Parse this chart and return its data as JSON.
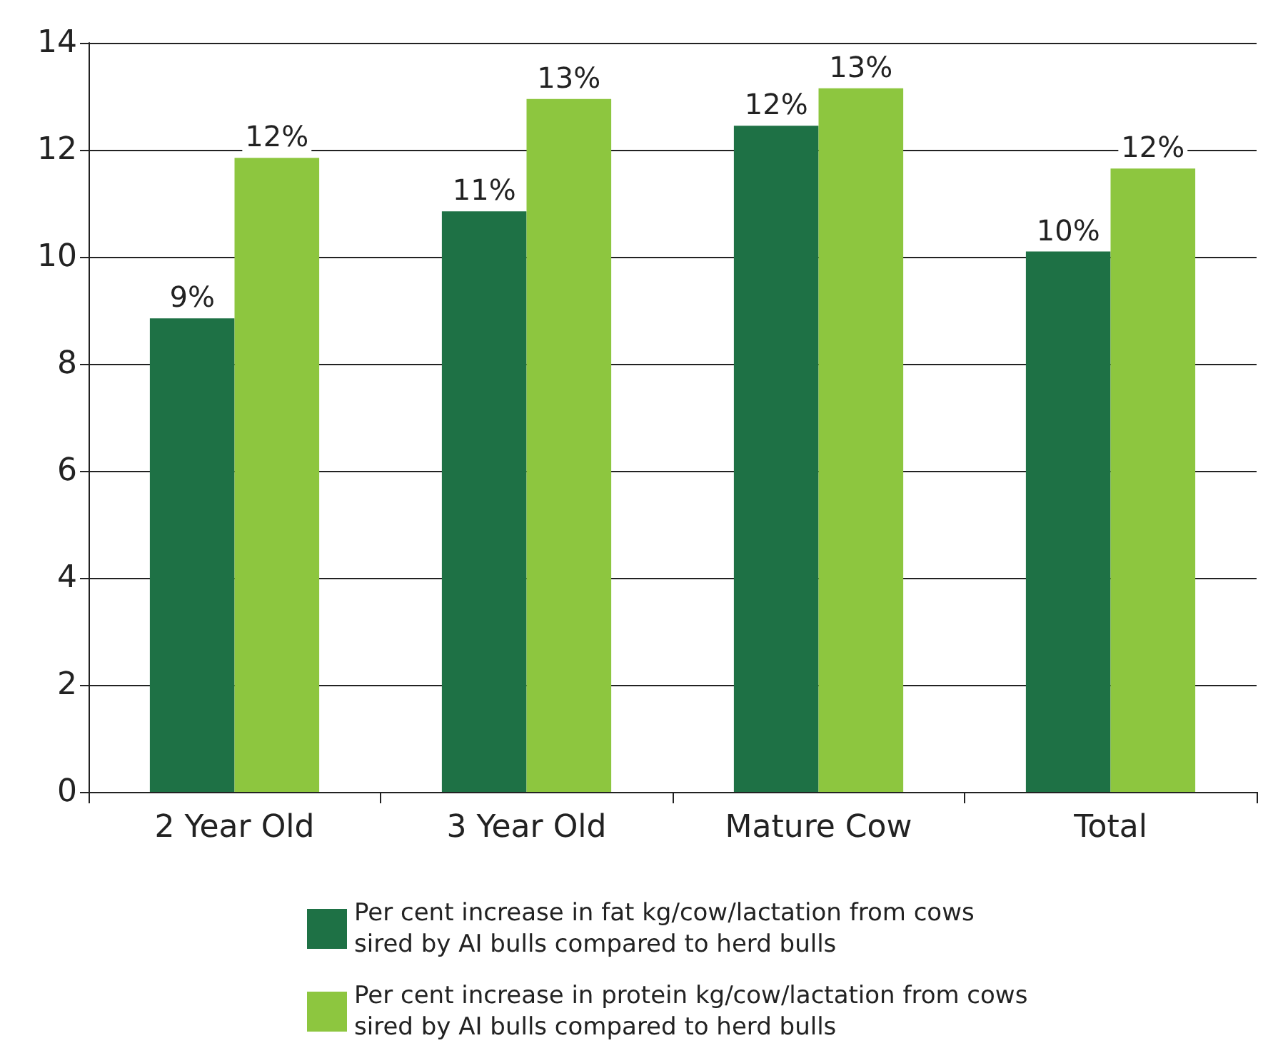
{
  "chart_data": {
    "type": "bar",
    "categories": [
      "2 Year Old",
      "3 Year Old",
      "Mature Cow",
      "Total"
    ],
    "series": [
      {
        "name": "Per cent increase in fat kg/cow/lactation from cows sired by AI bulls compared to herd bulls",
        "color": "#1e7145",
        "values": [
          8.85,
          10.85,
          12.45,
          10.1
        ],
        "value_labels": [
          "9%",
          "11%",
          "12%",
          "10%"
        ]
      },
      {
        "name": "Per cent increase in protein kg/cow/lactation from cows sired by AI bulls compared to herd bulls",
        "color": "#8dc63f",
        "values": [
          11.85,
          12.95,
          13.15,
          11.65
        ],
        "value_labels": [
          "12%",
          "13%",
          "13%",
          "12%"
        ]
      }
    ],
    "ylim": [
      0,
      14
    ],
    "yticks": [
      0,
      2,
      4,
      6,
      8,
      10,
      12,
      14
    ],
    "grid": "y",
    "legend": "bottom"
  }
}
